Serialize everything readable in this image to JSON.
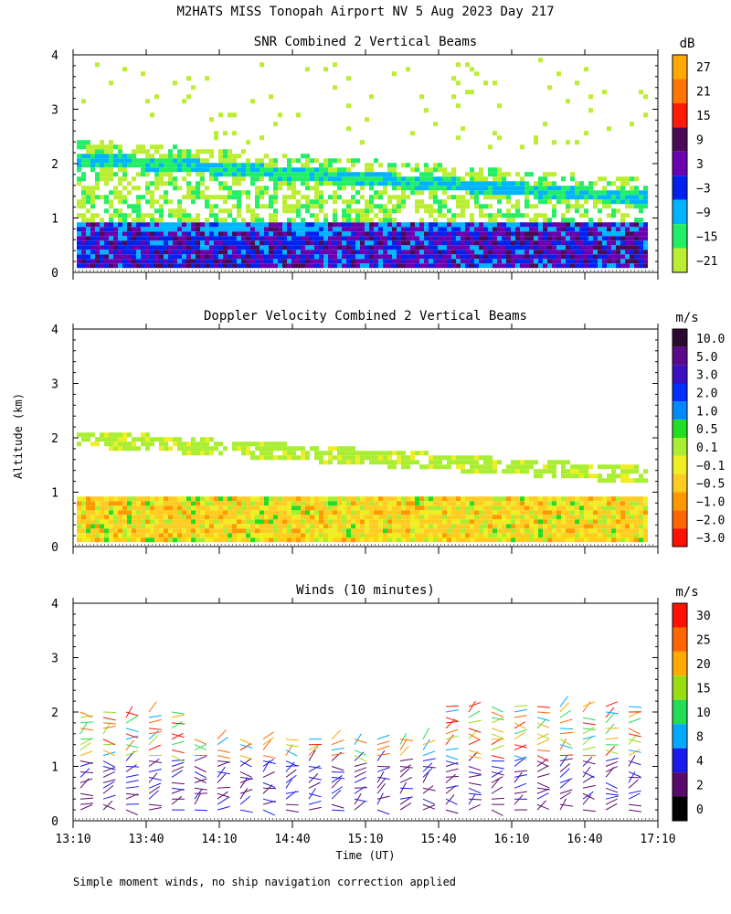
{
  "title": "M2HATS MISS Tonopah Airport NV   5 Aug 2023 Day 217",
  "ylabel": "Altitude (km)",
  "xlabel": "Time (UT)",
  "footnote": "Simple moment winds, no ship navigation correction applied",
  "chart_data": [
    {
      "type": "heatmap",
      "title": "SNR Combined 2 Vertical Beams",
      "ylim": [
        0,
        4
      ],
      "yticks": [
        "0",
        "1",
        "2",
        "3",
        "4"
      ],
      "xticks": [
        "13:10",
        "13:40",
        "14:10",
        "14:40",
        "15:10",
        "15:40",
        "16:10",
        "16:40",
        "17:10"
      ],
      "colorbar": {
        "unit": "dB",
        "labels": [
          "27",
          "21",
          "15",
          "9",
          "3",
          "−3",
          "−9",
          "−15",
          "−21"
        ],
        "colors": [
          "#ffaa00",
          "#ff7700",
          "#ff1a00",
          "#4a0a55",
          "#6a00b0",
          "#0022ee",
          "#00b4ff",
          "#22ee66",
          "#bbee33"
        ]
      }
    },
    {
      "type": "heatmap",
      "title": "Doppler Velocity Combined 2 Vertical Beams",
      "ylim": [
        0,
        4
      ],
      "yticks": [
        "0",
        "1",
        "2",
        "3",
        "4"
      ],
      "xticks": [
        "13:10",
        "13:40",
        "14:10",
        "14:40",
        "15:10",
        "15:40",
        "16:10",
        "16:40",
        "17:10"
      ],
      "colorbar": {
        "unit": "m/s",
        "labels": [
          "10.0",
          "5.0",
          "3.0",
          "2.0",
          "1.0",
          "0.5",
          "0.1",
          "−0.1",
          "−0.5",
          "−1.0",
          "−2.0",
          "−3.0"
        ],
        "colors": [
          "#2a0a30",
          "#5a0a8a",
          "#3a10c0",
          "#0030ff",
          "#0088ff",
          "#22dd22",
          "#aaee33",
          "#eeee22",
          "#ffcc22",
          "#ff9900",
          "#ff6600",
          "#ff1100"
        ]
      }
    },
    {
      "type": "scatter",
      "title": "Winds (10 minutes)",
      "ylim": [
        0,
        4
      ],
      "yticks": [
        "0",
        "1",
        "2",
        "3",
        "4"
      ],
      "xticks": [
        "13:10",
        "13:40",
        "14:10",
        "14:40",
        "15:10",
        "15:40",
        "16:10",
        "16:40",
        "17:10"
      ],
      "colorbar": {
        "unit": "m/s",
        "labels": [
          "30",
          "25",
          "20",
          "15",
          "10",
          "8",
          "4",
          "2",
          "0"
        ],
        "colors": [
          "#ff1100",
          "#ff6600",
          "#ffaa00",
          "#99dd11",
          "#22dd55",
          "#00aaff",
          "#1a1aee",
          "#5a0a6a",
          "#000000"
        ]
      }
    }
  ]
}
